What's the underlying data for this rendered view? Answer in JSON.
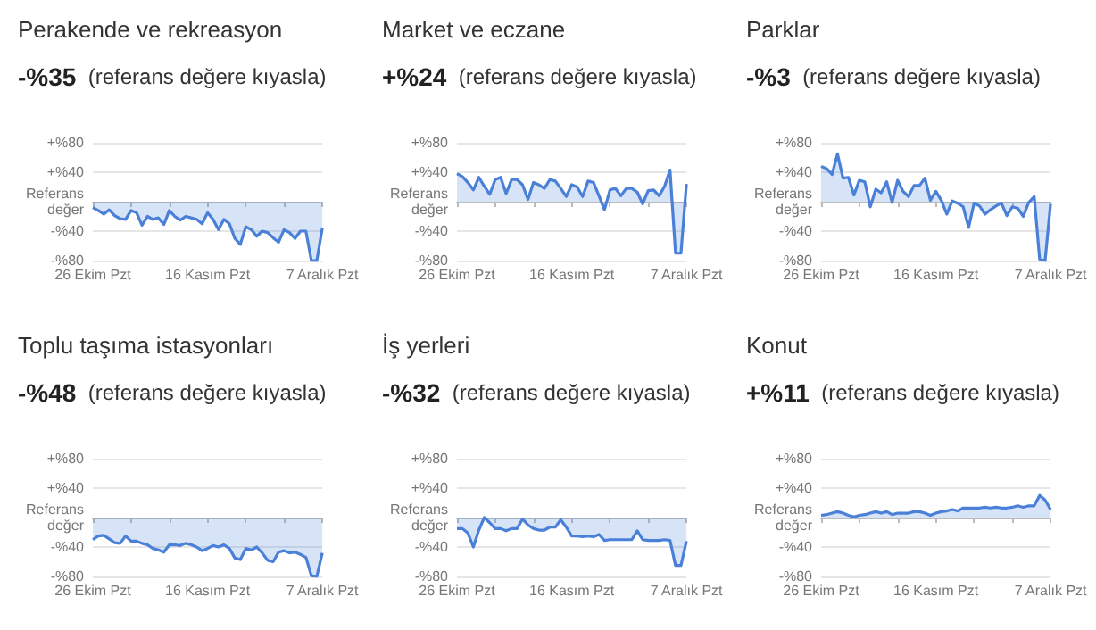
{
  "chart_data": [
    {
      "type": "area",
      "title": "Perakende ve rekreasyon",
      "subtitle": "-%35  (referans değere kıyasla)",
      "color": "#4a80d8",
      "grid": "y",
      "ylim": [
        -80,
        80
      ],
      "yticks": [
        {
          "value": 80,
          "label": "+%80"
        },
        {
          "value": 40,
          "label": "+%40"
        },
        {
          "value": 0,
          "label": "Referans\ndeğer"
        },
        {
          "value": -40,
          "label": "-%40"
        },
        {
          "value": -80,
          "label": "-%80"
        }
      ],
      "xlim": [
        "--10-26",
        "--12-07"
      ],
      "xticks": [
        {
          "value": "--10-26",
          "label": "26 Ekim Pzt"
        },
        {
          "value": "--11-02",
          "label": null
        },
        {
          "value": "--11-09",
          "label": null
        },
        {
          "value": "--11-16",
          "label": "16 Kasım Pzt"
        },
        {
          "value": "--11-23",
          "label": null
        },
        {
          "value": "--11-30",
          "label": null
        },
        {
          "value": "--12-07",
          "label": "7 Aralık Pzt"
        }
      ],
      "x": [
        "--10-26",
        "--10-27",
        "--10-28",
        "--10-29",
        "--10-30",
        "--10-31",
        "--11-01",
        "--11-02",
        "--11-03",
        "--11-04",
        "--11-05",
        "--11-06",
        "--11-07",
        "--11-08",
        "--11-09",
        "--11-10",
        "--11-11",
        "--11-12",
        "--11-13",
        "--11-14",
        "--11-15",
        "--11-16",
        "--11-17",
        "--11-18",
        "--11-19",
        "--11-20",
        "--11-21",
        "--11-22",
        "--11-23",
        "--11-24",
        "--11-25",
        "--11-26",
        "--11-27",
        "--11-28",
        "--11-29",
        "--11-30",
        "--12-01",
        "--12-02",
        "--12-03",
        "--12-04",
        "--12-05",
        "--12-06",
        "--12-07"
      ],
      "values": [
        -8,
        -12,
        -17,
        -11,
        -19,
        -23,
        -24,
        -12,
        -15,
        -32,
        -20,
        -24,
        -22,
        -31,
        -12,
        -20,
        -25,
        -20,
        -22,
        -24,
        -30,
        -15,
        -24,
        -38,
        -24,
        -30,
        -50,
        -58,
        -34,
        -38,
        -47,
        -40,
        -42,
        -49,
        -55,
        -38,
        -42,
        -50,
        -40,
        -40,
        -80,
        -80,
        -36
      ]
    },
    {
      "type": "area",
      "title": "Market ve eczane",
      "subtitle": "+%24  (referans değere kıyasla)",
      "color": "#4a80d8",
      "grid": "y",
      "ylim": [
        -80,
        80
      ],
      "yticks": [
        {
          "value": 80,
          "label": "+%80"
        },
        {
          "value": 40,
          "label": "+%40"
        },
        {
          "value": 0,
          "label": "Referans\ndeğer"
        },
        {
          "value": -40,
          "label": "-%40"
        },
        {
          "value": -80,
          "label": "-%80"
        }
      ],
      "xlim": [
        "--10-26",
        "--12-07"
      ],
      "xticks": [
        {
          "value": "--10-26",
          "label": "26 Ekim Pzt"
        },
        {
          "value": "--11-02",
          "label": null
        },
        {
          "value": "--11-09",
          "label": null
        },
        {
          "value": "--11-16",
          "label": "16 Kasım Pzt"
        },
        {
          "value": "--11-23",
          "label": null
        },
        {
          "value": "--11-30",
          "label": null
        },
        {
          "value": "--12-07",
          "label": "7 Aralık Pzt"
        }
      ],
      "x": [
        "--10-26",
        "--10-27",
        "--10-28",
        "--10-29",
        "--10-30",
        "--10-31",
        "--11-01",
        "--11-02",
        "--11-03",
        "--11-04",
        "--11-05",
        "--11-06",
        "--11-07",
        "--11-08",
        "--11-09",
        "--11-10",
        "--11-11",
        "--11-12",
        "--11-13",
        "--11-14",
        "--11-15",
        "--11-16",
        "--11-17",
        "--11-18",
        "--11-19",
        "--11-20",
        "--11-21",
        "--11-22",
        "--11-23",
        "--11-24",
        "--11-25",
        "--11-26",
        "--11-27",
        "--11-28",
        "--11-29",
        "--11-30",
        "--12-01",
        "--12-02",
        "--12-03",
        "--12-04",
        "--12-05",
        "--12-06",
        "--12-07"
      ],
      "values": [
        38,
        34,
        26,
        16,
        33,
        21,
        10,
        30,
        33,
        11,
        30,
        30,
        23,
        3,
        26,
        23,
        18,
        30,
        28,
        18,
        7,
        23,
        20,
        7,
        28,
        26,
        8,
        -11,
        16,
        18,
        8,
        18,
        18,
        13,
        -3,
        15,
        16,
        8,
        21,
        43,
        -70,
        -70,
        24
      ]
    },
    {
      "type": "area",
      "title": "Parklar",
      "subtitle": "-%3  (referans değere kıyasla)",
      "color": "#4a80d8",
      "grid": "y",
      "ylim": [
        -80,
        80
      ],
      "yticks": [
        {
          "value": 80,
          "label": "+%80"
        },
        {
          "value": 40,
          "label": "+%40"
        },
        {
          "value": 0,
          "label": "Referans\ndeğer"
        },
        {
          "value": -40,
          "label": "-%40"
        },
        {
          "value": -80,
          "label": "-%80"
        }
      ],
      "xlim": [
        "--10-26",
        "--12-07"
      ],
      "xticks": [
        {
          "value": "--10-26",
          "label": "26 Ekim Pzt"
        },
        {
          "value": "--11-02",
          "label": null
        },
        {
          "value": "--11-09",
          "label": null
        },
        {
          "value": "--11-16",
          "label": "16 Kasım Pzt"
        },
        {
          "value": "--11-23",
          "label": null
        },
        {
          "value": "--11-30",
          "label": null
        },
        {
          "value": "--12-07",
          "label": "7 Aralık Pzt"
        }
      ],
      "x": [
        "--10-26",
        "--10-27",
        "--10-28",
        "--10-29",
        "--10-30",
        "--10-31",
        "--11-01",
        "--11-02",
        "--11-03",
        "--11-04",
        "--11-05",
        "--11-06",
        "--11-07",
        "--11-08",
        "--11-09",
        "--11-10",
        "--11-11",
        "--11-12",
        "--11-13",
        "--11-14",
        "--11-15",
        "--11-16",
        "--11-17",
        "--11-18",
        "--11-19",
        "--11-20",
        "--11-21",
        "--11-22",
        "--11-23",
        "--11-24",
        "--11-25",
        "--11-26",
        "--11-27",
        "--11-28",
        "--11-29",
        "--11-30",
        "--12-01",
        "--12-02",
        "--12-03",
        "--12-04",
        "--12-05",
        "--12-06",
        "--12-07"
      ],
      "values": [
        48,
        45,
        37,
        65,
        32,
        33,
        9,
        29,
        27,
        -7,
        17,
        12,
        27,
        -1,
        29,
        14,
        7,
        22,
        22,
        32,
        2,
        14,
        2,
        -17,
        1,
        -2,
        -7,
        -35,
        -2,
        -6,
        -17,
        -11,
        -6,
        -2,
        -19,
        -7,
        -9,
        -20,
        -1,
        7,
        -78,
        -80,
        -3
      ]
    },
    {
      "type": "area",
      "title": "Toplu taşıma istasyonları",
      "subtitle": "-%48  (referans değere kıyasla)",
      "color": "#4a80d8",
      "grid": "y",
      "ylim": [
        -80,
        80
      ],
      "yticks": [
        {
          "value": 80,
          "label": "+%80"
        },
        {
          "value": 40,
          "label": "+%40"
        },
        {
          "value": 0,
          "label": "Referans\ndeğer"
        },
        {
          "value": -40,
          "label": "-%40"
        },
        {
          "value": -80,
          "label": "-%80"
        }
      ],
      "xlim": [
        "--10-26",
        "--12-07"
      ],
      "xticks": [
        {
          "value": "--10-26",
          "label": "26 Ekim Pzt"
        },
        {
          "value": "--11-02",
          "label": null
        },
        {
          "value": "--11-09",
          "label": null
        },
        {
          "value": "--11-16",
          "label": "16 Kasım Pzt"
        },
        {
          "value": "--11-23",
          "label": null
        },
        {
          "value": "--11-30",
          "label": null
        },
        {
          "value": "--12-07",
          "label": "7 Aralık Pzt"
        }
      ],
      "x": [
        "--10-26",
        "--10-27",
        "--10-28",
        "--10-29",
        "--10-30",
        "--10-31",
        "--11-01",
        "--11-02",
        "--11-03",
        "--11-04",
        "--11-05",
        "--11-06",
        "--11-07",
        "--11-08",
        "--11-09",
        "--11-10",
        "--11-11",
        "--11-12",
        "--11-13",
        "--11-14",
        "--11-15",
        "--11-16",
        "--11-17",
        "--11-18",
        "--11-19",
        "--11-20",
        "--11-21",
        "--11-22",
        "--11-23",
        "--11-24",
        "--11-25",
        "--11-26",
        "--11-27",
        "--11-28",
        "--11-29",
        "--11-30",
        "--12-01",
        "--12-02",
        "--12-03",
        "--12-04",
        "--12-05",
        "--12-06",
        "--12-07"
      ],
      "values": [
        -30,
        -25,
        -24,
        -29,
        -34,
        -35,
        -25,
        -32,
        -32,
        -35,
        -37,
        -42,
        -44,
        -47,
        -37,
        -37,
        -38,
        -35,
        -37,
        -40,
        -45,
        -42,
        -38,
        -40,
        -37,
        -42,
        -55,
        -57,
        -42,
        -44,
        -40,
        -48,
        -58,
        -60,
        -47,
        -45,
        -48,
        -47,
        -50,
        -54,
        -79,
        -80,
        -48
      ]
    },
    {
      "type": "area",
      "title": "İş yerleri",
      "subtitle": "-%32  (referans değere kıyasla)",
      "color": "#4a80d8",
      "grid": "y",
      "ylim": [
        -80,
        80
      ],
      "yticks": [
        {
          "value": 80,
          "label": "+%80"
        },
        {
          "value": 40,
          "label": "+%40"
        },
        {
          "value": 0,
          "label": "Referans\ndeğer"
        },
        {
          "value": -40,
          "label": "-%40"
        },
        {
          "value": -80,
          "label": "-%80"
        }
      ],
      "xlim": [
        "--10-26",
        "--12-07"
      ],
      "xticks": [
        {
          "value": "--10-26",
          "label": "26 Ekim Pzt"
        },
        {
          "value": "--11-02",
          "label": null
        },
        {
          "value": "--11-09",
          "label": null
        },
        {
          "value": "--11-16",
          "label": "16 Kasım Pzt"
        },
        {
          "value": "--11-23",
          "label": null
        },
        {
          "value": "--11-30",
          "label": null
        },
        {
          "value": "--12-07",
          "label": "7 Aralık Pzt"
        }
      ],
      "x": [
        "--10-26",
        "--10-27",
        "--10-28",
        "--10-29",
        "--10-30",
        "--10-31",
        "--11-01",
        "--11-02",
        "--11-03",
        "--11-04",
        "--11-05",
        "--11-06",
        "--11-07",
        "--11-08",
        "--11-09",
        "--11-10",
        "--11-11",
        "--11-12",
        "--11-13",
        "--11-14",
        "--11-15",
        "--11-16",
        "--11-17",
        "--11-18",
        "--11-19",
        "--11-20",
        "--11-21",
        "--11-22",
        "--11-23",
        "--11-24",
        "--11-25",
        "--11-26",
        "--11-27",
        "--11-28",
        "--11-29",
        "--11-30",
        "--12-01",
        "--12-02",
        "--12-03",
        "--12-04",
        "--12-05",
        "--12-06",
        "--12-07"
      ],
      "values": [
        -15,
        -15,
        -21,
        -40,
        -17,
        0,
        -7,
        -15,
        -15,
        -18,
        -15,
        -15,
        -2,
        -10,
        -15,
        -17,
        -17,
        -13,
        -13,
        -3,
        -13,
        -25,
        -25,
        -26,
        -25,
        -26,
        -23,
        -31,
        -30,
        -30,
        -30,
        -30,
        -30,
        -18,
        -30,
        -31,
        -31,
        -31,
        -30,
        -31,
        -65,
        -65,
        -32
      ]
    },
    {
      "type": "area",
      "title": "Konut",
      "subtitle": "+%11  (referans değere kıyasla)",
      "color": "#4a80d8",
      "grid": "y",
      "ylim": [
        -80,
        80
      ],
      "yticks": [
        {
          "value": 80,
          "label": "+%80"
        },
        {
          "value": 40,
          "label": "+%40"
        },
        {
          "value": 0,
          "label": "Referans\ndeğer"
        },
        {
          "value": -40,
          "label": "-%40"
        },
        {
          "value": -80,
          "label": "-%80"
        }
      ],
      "xlim": [
        "--10-26",
        "--12-07"
      ],
      "xticks": [
        {
          "value": "--10-26",
          "label": "26 Ekim Pzt"
        },
        {
          "value": "--11-02",
          "label": null
        },
        {
          "value": "--11-09",
          "label": null
        },
        {
          "value": "--11-16",
          "label": "16 Kasım Pzt"
        },
        {
          "value": "--11-23",
          "label": null
        },
        {
          "value": "--11-30",
          "label": null
        },
        {
          "value": "--12-07",
          "label": "7 Aralık Pzt"
        }
      ],
      "x": [
        "--10-26",
        "--10-27",
        "--10-28",
        "--10-29",
        "--10-30",
        "--10-31",
        "--11-01",
        "--11-02",
        "--11-03",
        "--11-04",
        "--11-05",
        "--11-06",
        "--11-07",
        "--11-08",
        "--11-09",
        "--11-10",
        "--11-11",
        "--11-12",
        "--11-13",
        "--11-14",
        "--11-15",
        "--11-16",
        "--11-17",
        "--11-18",
        "--11-19",
        "--11-20",
        "--11-21",
        "--11-22",
        "--11-23",
        "--11-24",
        "--11-25",
        "--11-26",
        "--11-27",
        "--11-28",
        "--11-29",
        "--11-30",
        "--12-01",
        "--12-02",
        "--12-03",
        "--12-04",
        "--12-05",
        "--12-06",
        "--12-07"
      ],
      "values": [
        3,
        4,
        6,
        8,
        6,
        3,
        1,
        3,
        4,
        6,
        8,
        6,
        8,
        4,
        6,
        6,
        6,
        8,
        8,
        6,
        3,
        6,
        8,
        9,
        11,
        9,
        13,
        13,
        13,
        13,
        14,
        13,
        14,
        13,
        13,
        14,
        16,
        14,
        16,
        16,
        30,
        24,
        11
      ]
    }
  ]
}
